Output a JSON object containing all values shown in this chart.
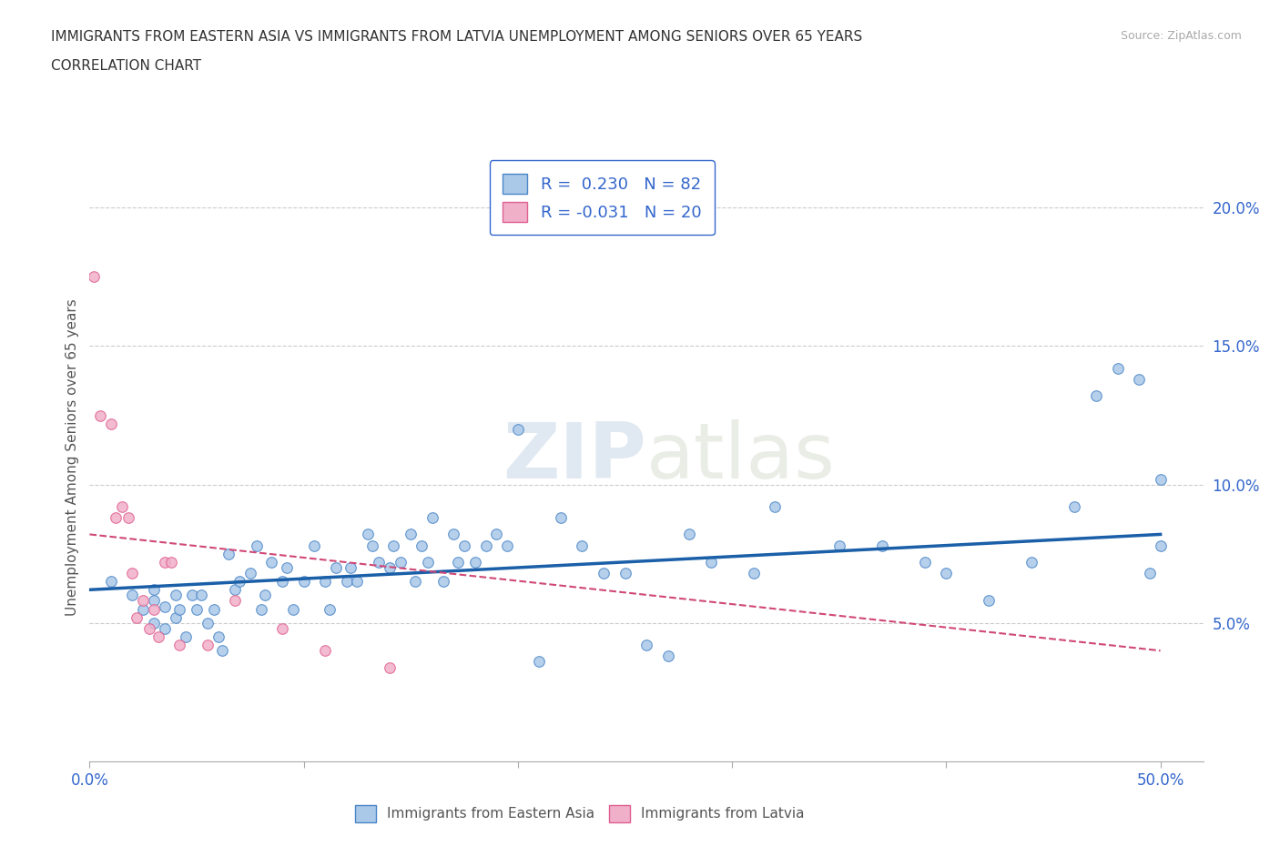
{
  "title_line1": "IMMIGRANTS FROM EASTERN ASIA VS IMMIGRANTS FROM LATVIA UNEMPLOYMENT AMONG SENIORS OVER 65 YEARS",
  "title_line2": "CORRELATION CHART",
  "source_text": "Source: ZipAtlas.com",
  "ylabel": "Unemployment Among Seniors over 65 years",
  "xlim": [
    0.0,
    0.52
  ],
  "ylim": [
    0.0,
    0.22
  ],
  "xticks": [
    0.0,
    0.1,
    0.2,
    0.3,
    0.4,
    0.5
  ],
  "xtick_labels": [
    "0.0%",
    "",
    "",
    "",
    "",
    "50.0%"
  ],
  "yticks": [
    0.05,
    0.1,
    0.15,
    0.2
  ],
  "ytick_labels": [
    "5.0%",
    "10.0%",
    "15.0%",
    "20.0%"
  ],
  "blue_color": "#aac8e8",
  "blue_edge_color": "#4a86c8",
  "blue_line_color": "#1a5fa8",
  "pink_color": "#f0b0c8",
  "pink_edge_color": "#e06090",
  "pink_line_color": "#d04878",
  "watermark": "ZIPatlas",
  "legend_R_blue": "R =  0.230   N = 82",
  "legend_R_pink": "R = -0.031   N = 20",
  "blue_scatter_x": [
    0.01,
    0.02,
    0.025,
    0.03,
    0.03,
    0.03,
    0.035,
    0.035,
    0.04,
    0.04,
    0.042,
    0.045,
    0.048,
    0.05,
    0.052,
    0.055,
    0.058,
    0.06,
    0.062,
    0.065,
    0.068,
    0.07,
    0.075,
    0.078,
    0.08,
    0.082,
    0.085,
    0.09,
    0.092,
    0.095,
    0.1,
    0.105,
    0.11,
    0.112,
    0.115,
    0.12,
    0.122,
    0.125,
    0.13,
    0.132,
    0.135,
    0.14,
    0.142,
    0.145,
    0.15,
    0.152,
    0.155,
    0.158,
    0.16,
    0.165,
    0.17,
    0.172,
    0.175,
    0.18,
    0.185,
    0.19,
    0.195,
    0.2,
    0.21,
    0.22,
    0.23,
    0.24,
    0.25,
    0.26,
    0.27,
    0.28,
    0.29,
    0.31,
    0.32,
    0.35,
    0.37,
    0.39,
    0.4,
    0.42,
    0.44,
    0.46,
    0.47,
    0.48,
    0.49,
    0.495,
    0.5,
    0.5
  ],
  "blue_scatter_y": [
    0.065,
    0.06,
    0.055,
    0.058,
    0.062,
    0.05,
    0.056,
    0.048,
    0.052,
    0.06,
    0.055,
    0.045,
    0.06,
    0.055,
    0.06,
    0.05,
    0.055,
    0.045,
    0.04,
    0.075,
    0.062,
    0.065,
    0.068,
    0.078,
    0.055,
    0.06,
    0.072,
    0.065,
    0.07,
    0.055,
    0.065,
    0.078,
    0.065,
    0.055,
    0.07,
    0.065,
    0.07,
    0.065,
    0.082,
    0.078,
    0.072,
    0.07,
    0.078,
    0.072,
    0.082,
    0.065,
    0.078,
    0.072,
    0.088,
    0.065,
    0.082,
    0.072,
    0.078,
    0.072,
    0.078,
    0.082,
    0.078,
    0.12,
    0.036,
    0.088,
    0.078,
    0.068,
    0.068,
    0.042,
    0.038,
    0.082,
    0.072,
    0.068,
    0.092,
    0.078,
    0.078,
    0.072,
    0.068,
    0.058,
    0.072,
    0.092,
    0.132,
    0.142,
    0.138,
    0.068,
    0.102,
    0.078
  ],
  "pink_scatter_x": [
    0.002,
    0.005,
    0.01,
    0.012,
    0.015,
    0.018,
    0.02,
    0.022,
    0.025,
    0.028,
    0.03,
    0.032,
    0.035,
    0.038,
    0.042,
    0.055,
    0.068,
    0.09,
    0.11,
    0.14
  ],
  "pink_scatter_y": [
    0.175,
    0.125,
    0.122,
    0.088,
    0.092,
    0.088,
    0.068,
    0.052,
    0.058,
    0.048,
    0.055,
    0.045,
    0.072,
    0.072,
    0.042,
    0.042,
    0.058,
    0.048,
    0.04,
    0.034
  ],
  "blue_trend_x": [
    0.0,
    0.5
  ],
  "blue_trend_y": [
    0.062,
    0.082
  ],
  "pink_trend_x": [
    0.0,
    0.5
  ],
  "pink_trend_y": [
    0.082,
    0.04
  ]
}
